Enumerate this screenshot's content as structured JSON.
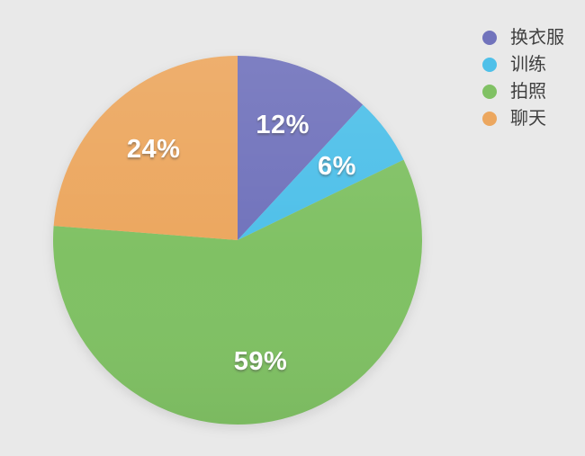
{
  "chart_data": {
    "type": "pie",
    "categories": [
      "换衣服",
      "训练",
      "拍照",
      "聊天"
    ],
    "values": [
      12,
      6,
      59,
      24
    ],
    "value_labels": [
      "12%",
      "6%",
      "59%",
      "24%"
    ],
    "colors": [
      "#7173bc",
      "#4fc0e9",
      "#80c164",
      "#eca75f"
    ],
    "start_angle": "12-oclock",
    "direction": "clockwise",
    "legend_position": "top-right",
    "background_color": "#e9e9e9",
    "slice_label_color": "#ffffff",
    "legend_text_color": "#3f3f3f",
    "title": ""
  }
}
